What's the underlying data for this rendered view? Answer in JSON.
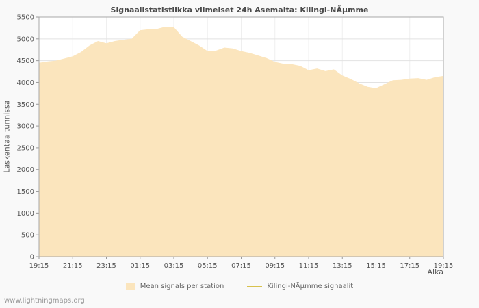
{
  "chart_data": {
    "type": "area",
    "title": "Signaalistatistiikka viimeiset 24h Asemalta: Kilingi-NÃµmme",
    "xlabel": "Aika",
    "ylabel": "Laskentaa tunnissa",
    "ylim": [
      0,
      5500
    ],
    "y_tick_step": 500,
    "x_tick_labels": [
      "19:15",
      "21:15",
      "23:15",
      "01:15",
      "03:15",
      "05:15",
      "07:15",
      "09:15",
      "11:15",
      "13:15",
      "15:15",
      "17:15",
      "19:15"
    ],
    "grid": true,
    "legend_position": "bottom",
    "series": [
      {
        "name": "Mean signals per station",
        "type": "area",
        "color": "#fbe5bd",
        "values": [
          4450,
          4480,
          4500,
          4550,
          4600,
          4700,
          4850,
          4950,
          4900,
          4950,
          4980,
          5000,
          5200,
          5220,
          5230,
          5280,
          5270,
          5050,
          4950,
          4850,
          4720,
          4730,
          4800,
          4780,
          4720,
          4680,
          4620,
          4560,
          4470,
          4430,
          4420,
          4380,
          4280,
          4320,
          4260,
          4300,
          4160,
          4080,
          3980,
          3900,
          3870,
          3960,
          4050,
          4060,
          4090,
          4100,
          4060,
          4120,
          4150
        ]
      },
      {
        "name": "Kilingi-NÃµmme signaalit",
        "type": "line",
        "color": "#d8c24e",
        "values": []
      }
    ]
  },
  "footer": {
    "watermark": "www.lightningmaps.org"
  }
}
